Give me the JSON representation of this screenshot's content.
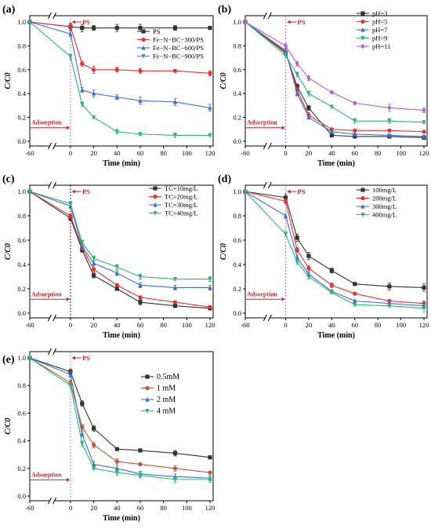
{
  "chart_data": [
    {
      "panel": "(a)",
      "type": "line",
      "xlabel": "Time (min)",
      "ylabel": "C/C0",
      "xlim": [
        -60,
        120
      ],
      "ylim": [
        0.0,
        1.0
      ],
      "xticks": [
        -60,
        0,
        20,
        40,
        60,
        80,
        100,
        120
      ],
      "yticks": [
        0.0,
        0.2,
        0.4,
        0.6,
        0.8,
        1.0
      ],
      "axis_break_after": -60,
      "legend_position": "top-right",
      "annotations": {
        "ps_label": "PS",
        "adsorption_label": "Adsorption"
      },
      "series": [
        {
          "name": "PS",
          "color": "#333333",
          "marker": "square",
          "x": [
            -60,
            0,
            10,
            20,
            40,
            60,
            90,
            120
          ],
          "y": [
            1.0,
            0.96,
            0.95,
            0.95,
            0.95,
            0.95,
            0.95,
            0.95
          ],
          "err": [
            0,
            0.03,
            0.03,
            0.02,
            0.03,
            0.03,
            0.02,
            0.01
          ]
        },
        {
          "name": "Fe−N−BC−300/PS",
          "color": "#e8312f",
          "marker": "circle",
          "x": [
            -60,
            0,
            10,
            20,
            40,
            60,
            90,
            120
          ],
          "y": [
            1.0,
            0.96,
            0.65,
            0.6,
            0.6,
            0.59,
            0.59,
            0.57
          ],
          "err": [
            0,
            0.02,
            0.02,
            0.03,
            0.02,
            0.02,
            0.01,
            0.02
          ]
        },
        {
          "name": "Fe−N−BC−600/PS",
          "color": "#3b6fd1",
          "marker": "triangle-up",
          "x": [
            -60,
            0,
            10,
            20,
            40,
            60,
            90,
            120
          ],
          "y": [
            1.0,
            0.9,
            0.43,
            0.4,
            0.37,
            0.34,
            0.33,
            0.28
          ],
          "err": [
            0,
            0.02,
            0.02,
            0.03,
            0.02,
            0.03,
            0.03,
            0.03
          ]
        },
        {
          "name": "Fe−N−BC−900/PS",
          "color": "#2db37a",
          "marker": "triangle-down",
          "x": [
            -60,
            0,
            10,
            20,
            40,
            60,
            90,
            120
          ],
          "y": [
            1.0,
            0.71,
            0.31,
            0.2,
            0.08,
            0.06,
            0.05,
            0.05
          ],
          "err": [
            0,
            0.02,
            0.02,
            0.01,
            0.02,
            0.01,
            0.02,
            0.01
          ]
        }
      ]
    },
    {
      "panel": "(b)",
      "type": "line",
      "xlabel": "Time (min)",
      "ylabel": "C/C0",
      "xlim": [
        -60,
        120
      ],
      "ylim": [
        0.0,
        1.0
      ],
      "xticks": [
        -60,
        0,
        20,
        40,
        60,
        80,
        100,
        120
      ],
      "yticks": [
        0.0,
        0.2,
        0.4,
        0.6,
        0.8,
        1.0
      ],
      "axis_break_after": -60,
      "legend_position": "top-right",
      "annotations": {
        "ps_label": "PS",
        "adsorption_label": "Adsorption"
      },
      "series": [
        {
          "name": "pH=3",
          "color": "#333333",
          "marker": "square",
          "x": [
            -60,
            0,
            10,
            20,
            40,
            60,
            90,
            120
          ],
          "y": [
            1.0,
            0.74,
            0.46,
            0.28,
            0.05,
            0.04,
            0.04,
            0.03
          ],
          "err": [
            0,
            0.02,
            0.02,
            0.02,
            0.01,
            0.01,
            0.01,
            0.01
          ]
        },
        {
          "name": "pH=5",
          "color": "#e8312f",
          "marker": "circle",
          "x": [
            -60,
            0,
            10,
            20,
            40,
            60,
            90,
            120
          ],
          "y": [
            1.0,
            0.75,
            0.43,
            0.22,
            0.1,
            0.09,
            0.09,
            0.08
          ],
          "err": [
            0,
            0.02,
            0.02,
            0.02,
            0.01,
            0.01,
            0.01,
            0.01
          ]
        },
        {
          "name": "pH=7",
          "color": "#3b6fd1",
          "marker": "triangle-up",
          "x": [
            -60,
            0,
            10,
            20,
            40,
            60,
            90,
            120
          ],
          "y": [
            1.0,
            0.76,
            0.4,
            0.2,
            0.08,
            0.06,
            0.05,
            0.04
          ],
          "err": [
            0,
            0.02,
            0.02,
            0.01,
            0.01,
            0.01,
            0.01,
            0.01
          ]
        },
        {
          "name": "pH=9",
          "color": "#2db37a",
          "marker": "triangle-down",
          "x": [
            -60,
            0,
            10,
            20,
            40,
            60,
            90,
            120
          ],
          "y": [
            1.0,
            0.72,
            0.56,
            0.4,
            0.29,
            0.17,
            0.17,
            0.16
          ],
          "err": [
            0,
            0.02,
            0.02,
            0.02,
            0.01,
            0.02,
            0.02,
            0.01
          ]
        },
        {
          "name": "pH=11",
          "color": "#b05cd6",
          "marker": "diamond",
          "x": [
            -60,
            0,
            10,
            20,
            40,
            60,
            90,
            120
          ],
          "y": [
            1.0,
            0.8,
            0.65,
            0.53,
            0.41,
            0.32,
            0.28,
            0.26
          ],
          "err": [
            0,
            0.02,
            0.02,
            0.02,
            0.01,
            0.01,
            0.03,
            0.02
          ]
        }
      ]
    },
    {
      "panel": "(c)",
      "type": "line",
      "xlabel": "Time (min)",
      "ylabel": "C/C0",
      "xlim": [
        -60,
        120
      ],
      "ylim": [
        0.0,
        1.0
      ],
      "xticks": [
        -60,
        0,
        20,
        40,
        60,
        80,
        100,
        120
      ],
      "yticks": [
        0.0,
        0.2,
        0.4,
        0.6,
        0.8,
        1.0
      ],
      "axis_break_after": -60,
      "legend_position": "top-right",
      "annotations": {
        "ps_label": "PS",
        "adsorption_label": "Adsorption"
      },
      "series": [
        {
          "name": "TC=10mg/L",
          "color": "#333333",
          "marker": "square",
          "x": [
            -60,
            0,
            10,
            20,
            40,
            60,
            90,
            120
          ],
          "y": [
            1.0,
            0.78,
            0.52,
            0.31,
            0.2,
            0.09,
            0.06,
            0.04
          ],
          "err": [
            0,
            0.02,
            0.02,
            0.02,
            0.01,
            0.02,
            0.01,
            0.01
          ]
        },
        {
          "name": "TC=20mg/L",
          "color": "#e8312f",
          "marker": "circle",
          "x": [
            -60,
            0,
            10,
            20,
            40,
            60,
            90,
            120
          ],
          "y": [
            1.0,
            0.8,
            0.54,
            0.36,
            0.23,
            0.13,
            0.09,
            0.05
          ],
          "err": [
            0,
            0.02,
            0.02,
            0.02,
            0.01,
            0.01,
            0.01,
            0.01
          ]
        },
        {
          "name": "TC=30mg/L",
          "color": "#3b6fd1",
          "marker": "triangle-up",
          "x": [
            -60,
            0,
            10,
            20,
            40,
            60,
            90,
            120
          ],
          "y": [
            1.0,
            0.88,
            0.55,
            0.41,
            0.33,
            0.23,
            0.21,
            0.21
          ],
          "err": [
            0,
            0.02,
            0.02,
            0.02,
            0.02,
            0.02,
            0.02,
            0.02
          ]
        },
        {
          "name": "TC=40mg/L",
          "color": "#2db37a",
          "marker": "triangle-down",
          "x": [
            -60,
            0,
            10,
            20,
            40,
            60,
            90,
            120
          ],
          "y": [
            1.0,
            0.9,
            0.58,
            0.45,
            0.38,
            0.3,
            0.28,
            0.28
          ],
          "err": [
            0,
            0.02,
            0.02,
            0.02,
            0.02,
            0.02,
            0.01,
            0.02
          ]
        }
      ]
    },
    {
      "panel": "(d)",
      "type": "line",
      "xlabel": "Time (min)",
      "ylabel": "C/C0",
      "xlim": [
        -60,
        120
      ],
      "ylim": [
        0.0,
        1.0
      ],
      "xticks": [
        -60,
        0,
        20,
        40,
        60,
        80,
        100,
        120
      ],
      "yticks": [
        0.0,
        0.2,
        0.4,
        0.6,
        0.8,
        1.0
      ],
      "axis_break_after": -60,
      "legend_position": "top-right",
      "annotations": {
        "ps_label": "PS",
        "adsorption_label": "Adsorption"
      },
      "series": [
        {
          "name": "100mg/L",
          "color": "#333333",
          "marker": "square",
          "x": [
            -60,
            0,
            10,
            20,
            40,
            60,
            90,
            120
          ],
          "y": [
            1.0,
            0.95,
            0.62,
            0.47,
            0.35,
            0.24,
            0.22,
            0.21
          ],
          "err": [
            0,
            0.03,
            0.03,
            0.03,
            0.02,
            0.01,
            0.03,
            0.03
          ]
        },
        {
          "name": "200mg/L",
          "color": "#e8312f",
          "marker": "circle",
          "x": [
            -60,
            0,
            10,
            20,
            40,
            60,
            90,
            120
          ],
          "y": [
            1.0,
            0.92,
            0.52,
            0.37,
            0.23,
            0.16,
            0.1,
            0.08
          ],
          "err": [
            0,
            0.02,
            0.02,
            0.02,
            0.02,
            0.01,
            0.01,
            0.02
          ]
        },
        {
          "name": "300mg/L",
          "color": "#3b6fd1",
          "marker": "triangle-up",
          "x": [
            -60,
            0,
            10,
            20,
            40,
            60,
            90,
            120
          ],
          "y": [
            1.0,
            0.8,
            0.46,
            0.32,
            0.18,
            0.1,
            0.08,
            0.06
          ],
          "err": [
            0,
            0.02,
            0.02,
            0.02,
            0.01,
            0.01,
            0.01,
            0.02
          ]
        },
        {
          "name": "400mg/L",
          "color": "#2db37a",
          "marker": "triangle-down",
          "x": [
            -60,
            0,
            10,
            20,
            40,
            60,
            90,
            120
          ],
          "y": [
            1.0,
            0.65,
            0.42,
            0.3,
            0.17,
            0.07,
            0.06,
            0.04
          ],
          "err": [
            0,
            0.02,
            0.02,
            0.02,
            0.01,
            0.01,
            0.01,
            0.03
          ]
        }
      ]
    },
    {
      "panel": "(e)",
      "type": "line",
      "xlabel": "Time (min)",
      "ylabel": "C/C0",
      "xlim": [
        -60,
        120
      ],
      "ylim": [
        0.0,
        1.0
      ],
      "xticks": [
        -60,
        0,
        20,
        40,
        60,
        80,
        100,
        120
      ],
      "yticks": [
        0.0,
        0.2,
        0.4,
        0.6,
        0.8,
        1.0
      ],
      "axis_break_after": -60,
      "legend_position": "top-right",
      "annotations": {
        "ps_label": "PS",
        "adsorption_label": "Adsorption"
      },
      "series": [
        {
          "name": "0.5mM",
          "color": "#333333",
          "marker": "square",
          "x": [
            -60,
            0,
            10,
            20,
            40,
            60,
            90,
            120
          ],
          "y": [
            1.0,
            0.9,
            0.67,
            0.49,
            0.34,
            0.33,
            0.31,
            0.28
          ],
          "err": [
            0,
            0.02,
            0.02,
            0.02,
            0.01,
            0.01,
            0.02,
            0.01
          ]
        },
        {
          "name": "1 mM",
          "color": "#c0553a",
          "marker": "circle",
          "x": [
            -60,
            0,
            10,
            20,
            40,
            60,
            90,
            120
          ],
          "y": [
            1.0,
            0.82,
            0.5,
            0.37,
            0.25,
            0.23,
            0.2,
            0.17
          ],
          "err": [
            0,
            0.02,
            0.02,
            0.02,
            0.02,
            0.01,
            0.02,
            0.01
          ]
        },
        {
          "name": "2 mM",
          "color": "#3b6fd1",
          "marker": "triangle-up",
          "x": [
            -60,
            0,
            10,
            20,
            40,
            60,
            90,
            120
          ],
          "y": [
            1.0,
            0.88,
            0.45,
            0.23,
            0.2,
            0.16,
            0.14,
            0.13
          ],
          "err": [
            0,
            0.02,
            0.02,
            0.02,
            0.02,
            0.02,
            0.02,
            0.02
          ]
        },
        {
          "name": "4 mM",
          "color": "#2db37a",
          "marker": "triangle-down",
          "x": [
            -60,
            0,
            10,
            20,
            40,
            60,
            90,
            120
          ],
          "y": [
            1.0,
            0.8,
            0.38,
            0.2,
            0.17,
            0.15,
            0.12,
            0.12
          ],
          "err": [
            0,
            0.02,
            0.02,
            0.01,
            0.02,
            0.02,
            0.02,
            0.02
          ]
        }
      ]
    }
  ]
}
